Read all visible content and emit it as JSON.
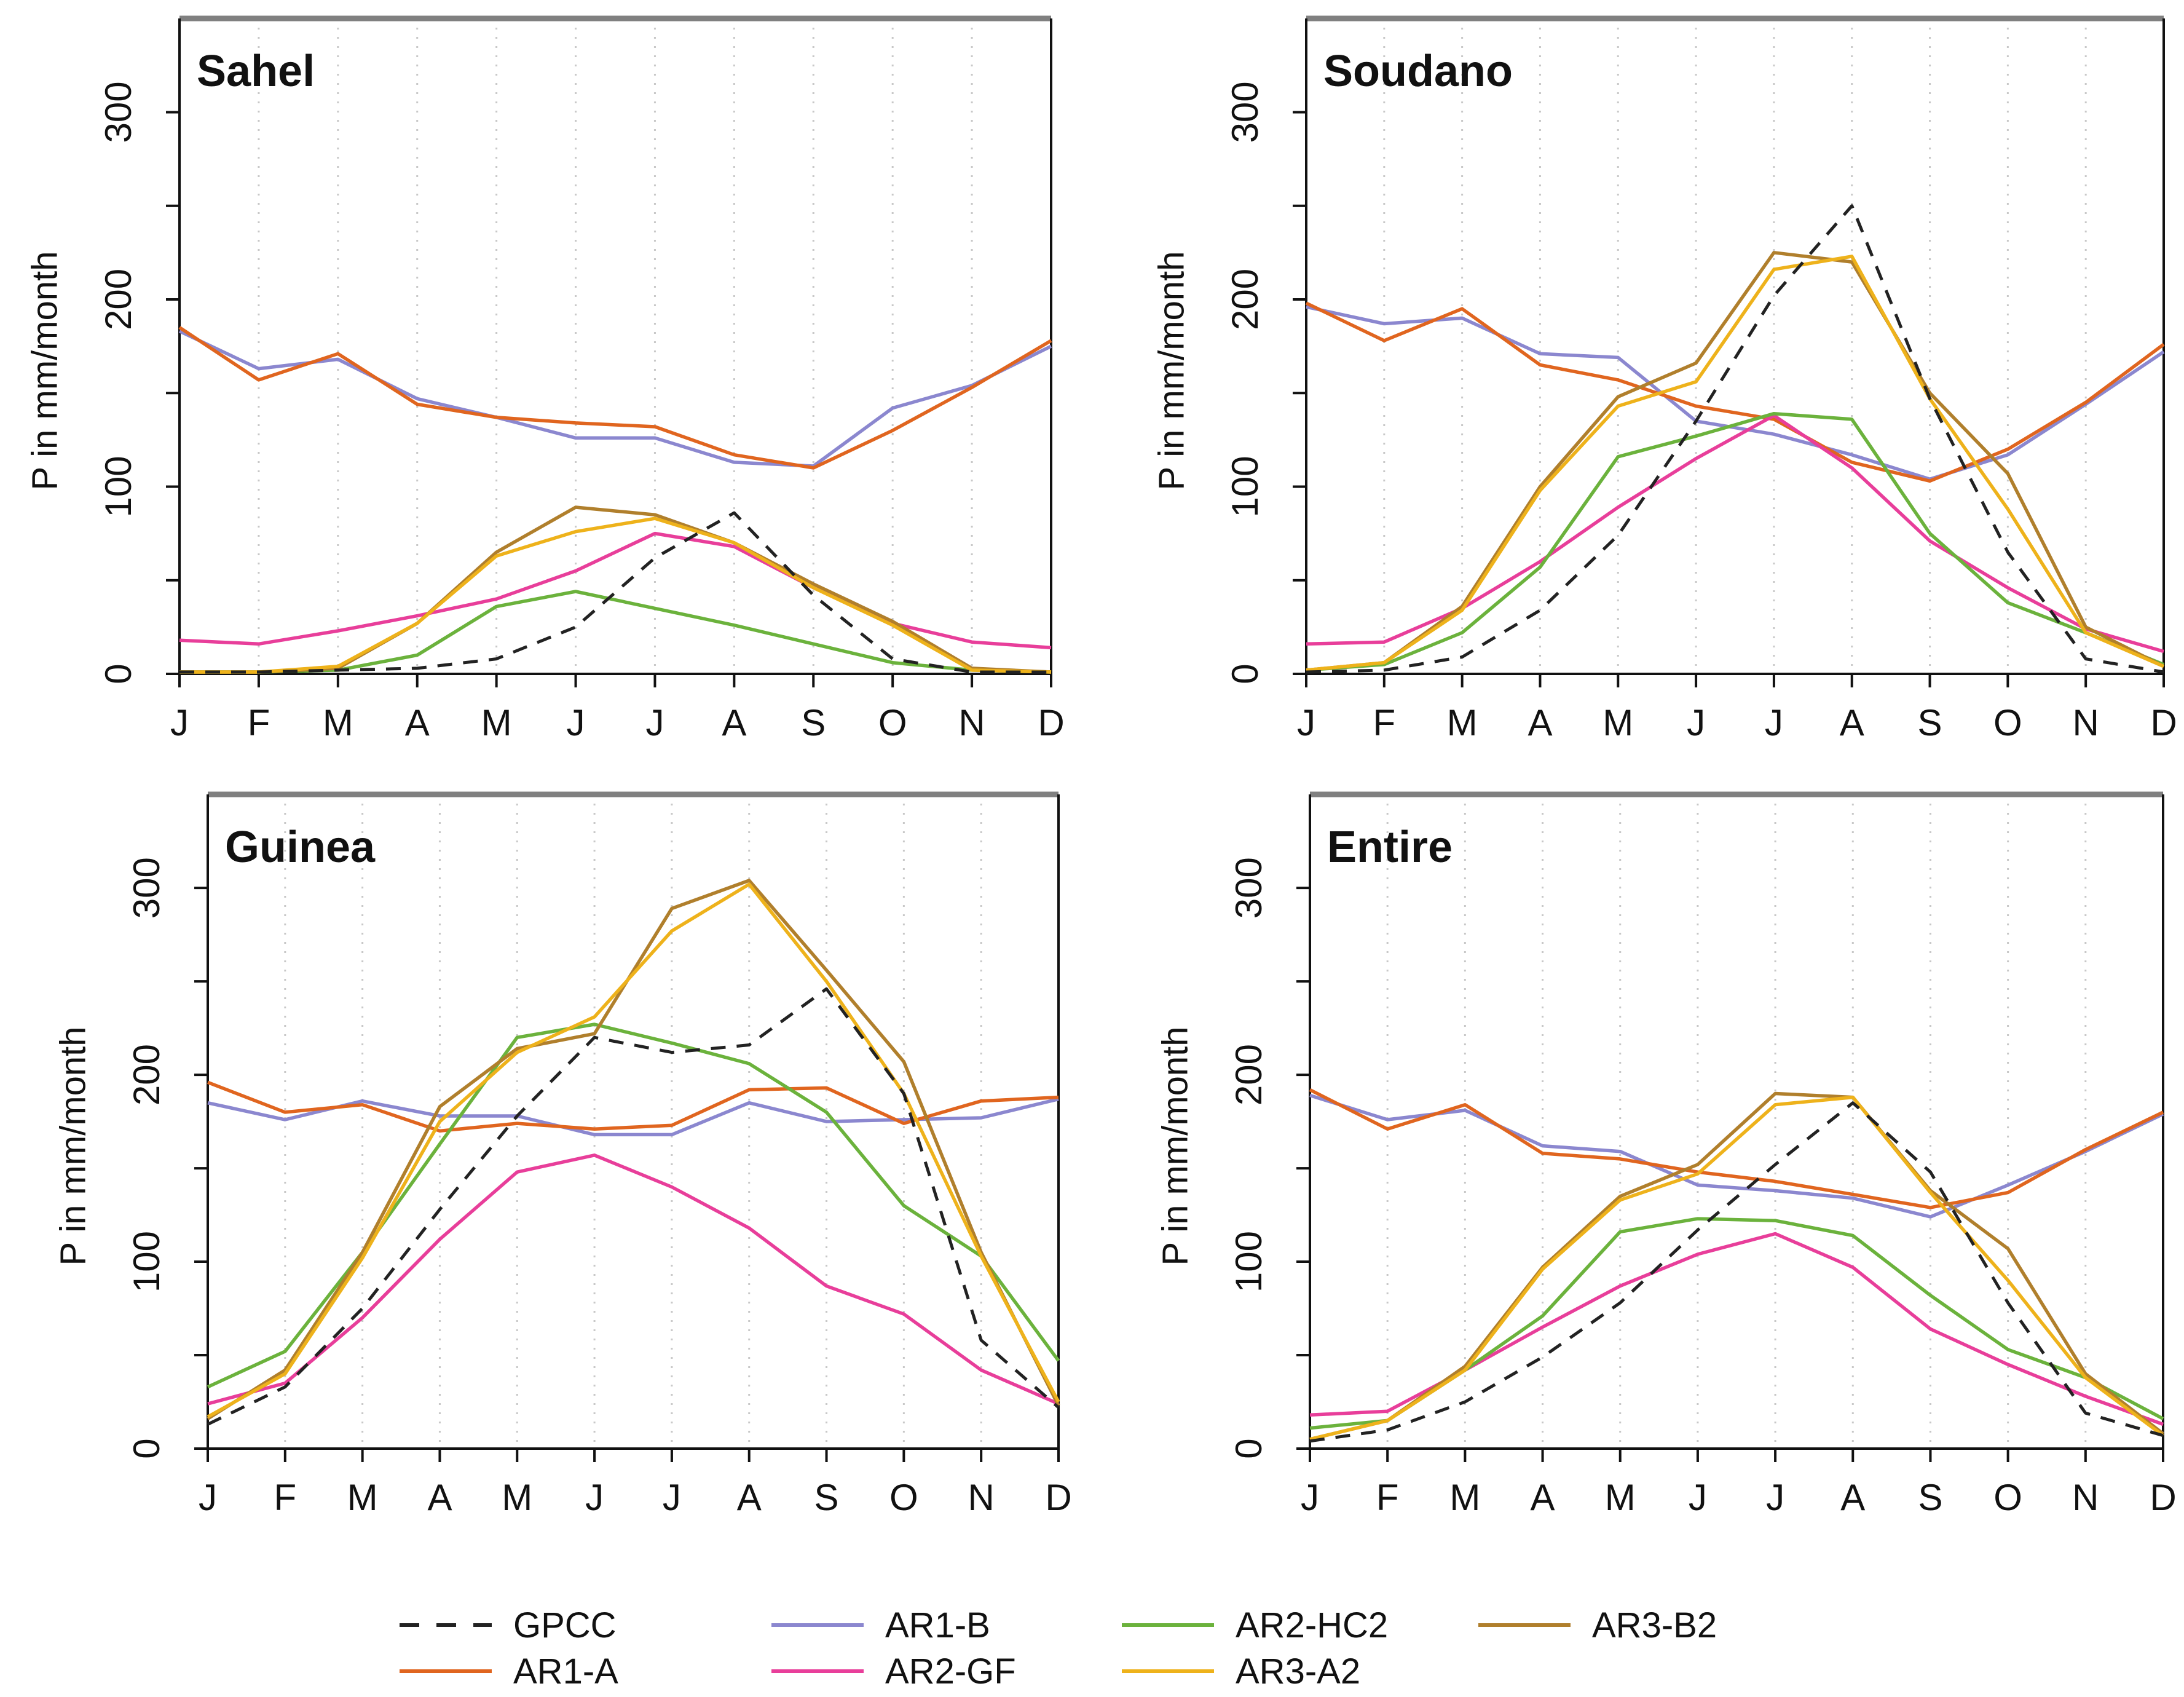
{
  "chart_data": [
    {
      "type": "line",
      "title": "Sahel",
      "ylabel": "P in mm/month",
      "xlabel": "",
      "x": [
        "J",
        "F",
        "M",
        "A",
        "M",
        "J",
        "J",
        "A",
        "S",
        "O",
        "N",
        "D"
      ],
      "ylim": [
        0,
        350
      ],
      "yticks": [
        0,
        100,
        200,
        300
      ],
      "series": [
        {
          "name": "GPCC",
          "values": [
            1,
            1,
            2,
            3,
            8,
            25,
            62,
            86,
            42,
            8,
            1,
            1
          ]
        },
        {
          "name": "AR1-B",
          "values": [
            183,
            163,
            168,
            147,
            137,
            126,
            126,
            113,
            111,
            142,
            154,
            175
          ]
        },
        {
          "name": "AR1-A",
          "values": [
            185,
            157,
            171,
            144,
            137,
            134,
            132,
            117,
            110,
            130,
            153,
            178
          ]
        },
        {
          "name": "AR2-GF",
          "values": [
            18,
            16,
            23,
            31,
            40,
            55,
            75,
            68,
            46,
            27,
            17,
            14
          ]
        },
        {
          "name": "AR2-HC2",
          "values": [
            1,
            1,
            2,
            10,
            36,
            44,
            35,
            26,
            16,
            6,
            2,
            1
          ]
        },
        {
          "name": "AR3-A2",
          "values": [
            1,
            1,
            4,
            27,
            63,
            76,
            83,
            70,
            46,
            26,
            2,
            1
          ]
        },
        {
          "name": "AR3-B2",
          "values": [
            1,
            1,
            3,
            27,
            65,
            89,
            85,
            70,
            48,
            28,
            3,
            1
          ]
        }
      ]
    },
    {
      "type": "line",
      "title": "Soudano",
      "ylabel": "P in mm/month",
      "xlabel": "",
      "x": [
        "J",
        "F",
        "M",
        "A",
        "M",
        "J",
        "J",
        "A",
        "S",
        "O",
        "N",
        "D"
      ],
      "ylim": [
        0,
        350
      ],
      "yticks": [
        0,
        100,
        200,
        300
      ],
      "series": [
        {
          "name": "GPCC",
          "values": [
            1,
            2,
            9,
            34,
            74,
            135,
            202,
            250,
            147,
            65,
            8,
            1
          ]
        },
        {
          "name": "AR1-B",
          "values": [
            196,
            187,
            190,
            171,
            169,
            135,
            128,
            117,
            104,
            117,
            144,
            172
          ]
        },
        {
          "name": "AR1-A",
          "values": [
            198,
            178,
            195,
            165,
            157,
            143,
            136,
            113,
            103,
            120,
            145,
            176
          ]
        },
        {
          "name": "AR2-GF",
          "values": [
            16,
            17,
            35,
            60,
            89,
            115,
            138,
            110,
            71,
            46,
            24,
            12
          ]
        },
        {
          "name": "AR2-HC2",
          "values": [
            2,
            5,
            22,
            57,
            116,
            127,
            139,
            136,
            75,
            38,
            22,
            5
          ]
        },
        {
          "name": "AR3-A2",
          "values": [
            2,
            6,
            34,
            98,
            143,
            156,
            216,
            223,
            147,
            88,
            22,
            4
          ]
        },
        {
          "name": "AR3-B2",
          "values": [
            2,
            6,
            36,
            100,
            148,
            166,
            225,
            220,
            150,
            107,
            25,
            4
          ]
        }
      ]
    },
    {
      "type": "line",
      "title": "Guinea",
      "ylabel": "P in mm/month",
      "xlabel": "",
      "x": [
        "J",
        "F",
        "M",
        "A",
        "M",
        "J",
        "J",
        "A",
        "S",
        "O",
        "N",
        "D"
      ],
      "ylim": [
        0,
        350
      ],
      "yticks": [
        0,
        100,
        200,
        300
      ],
      "series": [
        {
          "name": "GPCC",
          "values": [
            13,
            33,
            75,
            128,
            178,
            220,
            212,
            216,
            246,
            190,
            58,
            22
          ]
        },
        {
          "name": "AR1-B",
          "values": [
            185,
            176,
            186,
            178,
            178,
            168,
            168,
            185,
            175,
            176,
            177,
            187
          ]
        },
        {
          "name": "AR1-A",
          "values": [
            196,
            180,
            184,
            170,
            174,
            171,
            173,
            192,
            193,
            174,
            186,
            188
          ]
        },
        {
          "name": "AR2-GF",
          "values": [
            24,
            35,
            70,
            112,
            148,
            157,
            140,
            118,
            87,
            72,
            42,
            24
          ]
        },
        {
          "name": "AR2-HC2",
          "values": [
            33,
            52,
            105,
            163,
            220,
            227,
            217,
            206,
            180,
            130,
            103,
            47
          ]
        },
        {
          "name": "AR3-A2",
          "values": [
            17,
            40,
            102,
            175,
            212,
            231,
            277,
            302,
            250,
            190,
            103,
            25
          ]
        },
        {
          "name": "AR3-B2",
          "values": [
            16,
            42,
            105,
            183,
            214,
            222,
            289,
            304,
            256,
            207,
            105,
            23
          ]
        }
      ]
    },
    {
      "type": "line",
      "title": "Entire",
      "ylabel": "P in mm/month",
      "xlabel": "",
      "x": [
        "J",
        "F",
        "M",
        "A",
        "M",
        "J",
        "J",
        "A",
        "S",
        "O",
        "N",
        "D"
      ],
      "ylim": [
        0,
        350
      ],
      "yticks": [
        0,
        100,
        200,
        300
      ],
      "series": [
        {
          "name": "GPCC",
          "values": [
            4,
            10,
            25,
            49,
            78,
            117,
            152,
            185,
            148,
            78,
            19,
            7
          ]
        },
        {
          "name": "AR1-B",
          "values": [
            189,
            176,
            181,
            162,
            159,
            141,
            138,
            134,
            124,
            141,
            159,
            179
          ]
        },
        {
          "name": "AR1-A",
          "values": [
            192,
            171,
            184,
            158,
            155,
            148,
            143,
            136,
            129,
            137,
            160,
            180
          ]
        },
        {
          "name": "AR2-GF",
          "values": [
            18,
            20,
            42,
            65,
            87,
            104,
            115,
            97,
            64,
            45,
            28,
            13
          ]
        },
        {
          "name": "AR2-HC2",
          "values": [
            11,
            15,
            42,
            71,
            116,
            123,
            122,
            114,
            82,
            53,
            38,
            16
          ]
        },
        {
          "name": "AR3-A2",
          "values": [
            5,
            15,
            42,
            96,
            133,
            147,
            184,
            188,
            137,
            90,
            38,
            7
          ]
        },
        {
          "name": "AR3-B2",
          "values": [
            5,
            15,
            44,
            97,
            135,
            152,
            190,
            188,
            138,
            107,
            40,
            8
          ]
        }
      ]
    }
  ],
  "legend": {
    "placement": "bottom",
    "entries": [
      {
        "name": "GPCC",
        "color": "#222222",
        "dash": true
      },
      {
        "name": "AR1-A",
        "color": "#E0651F",
        "dash": false
      },
      {
        "name": "AR1-B",
        "color": "#8B87CF",
        "dash": false
      },
      {
        "name": "AR2-GF",
        "color": "#E83E9A",
        "dash": false
      },
      {
        "name": "AR2-HC2",
        "color": "#6BB23C",
        "dash": false
      },
      {
        "name": "AR3-A2",
        "color": "#EEB21B",
        "dash": false
      },
      {
        "name": "AR3-B2",
        "color": "#B07F2C",
        "dash": false
      }
    ]
  },
  "colors": {
    "GPCC": "#222222",
    "AR1-A": "#E0651F",
    "AR1-B": "#8B87CF",
    "AR2-GF": "#E83E9A",
    "AR2-HC2": "#6BB23C",
    "AR3-A2": "#EEB21B",
    "AR3-B2": "#B07F2C",
    "axis": "#111111",
    "frame_top": "#808080",
    "grid": "#c8c8c8"
  }
}
